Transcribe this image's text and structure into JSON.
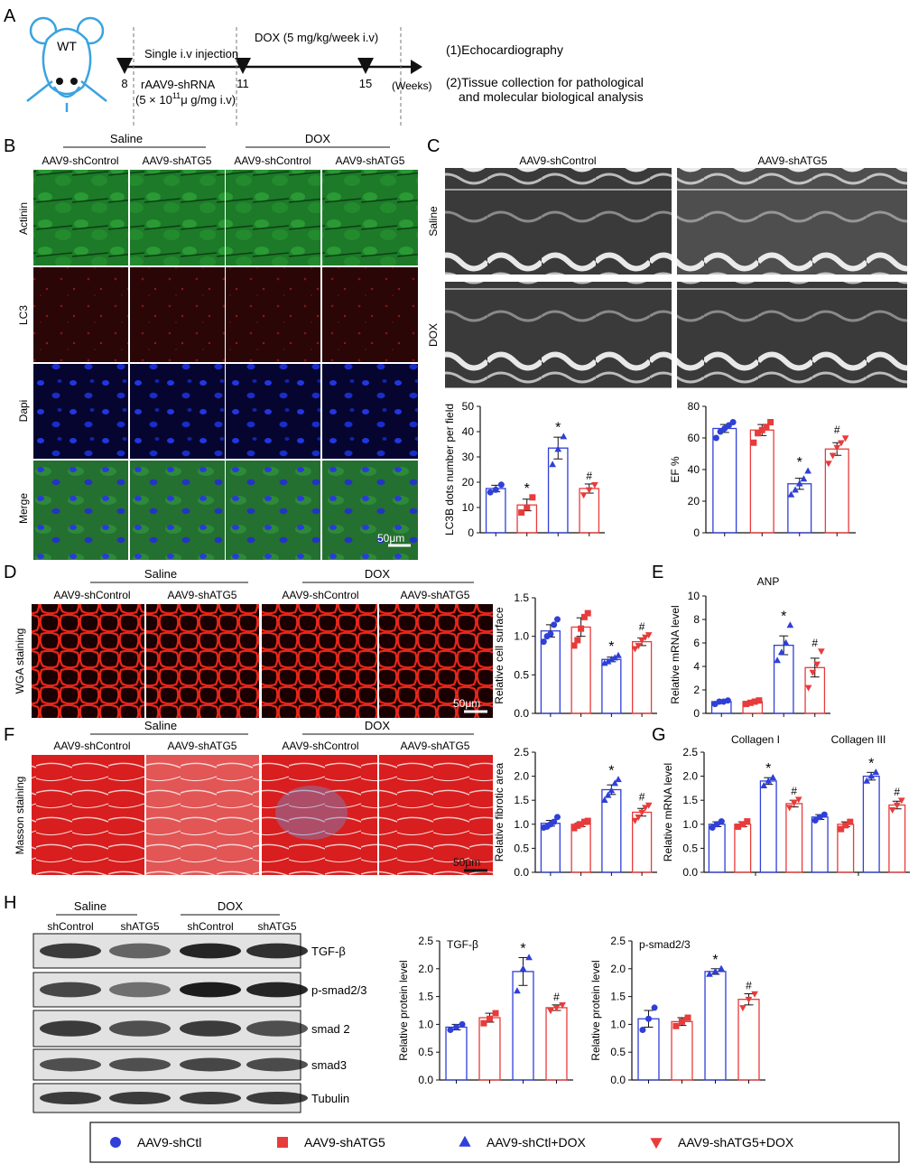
{
  "panels": {
    "A": "A",
    "B": "B",
    "C": "C",
    "D": "D",
    "E": "E",
    "F": "F",
    "G": "G",
    "H": "H"
  },
  "panel_a": {
    "mouse_label": "WT",
    "injection": "Single i.v injection",
    "dox": "DOX (5 mg/kg/week i.v)",
    "ticks": [
      "8",
      "11",
      "15"
    ],
    "weeks": "(Weeks)",
    "virus_line1": "rAAV9-shRNA",
    "virus_line2_pre": "(5 × 10",
    "virus_line2_sup": "11",
    "virus_line2_post": "μ g/mg i.v)",
    "outcome1": "(1)Echocardiography",
    "outcome2a": "(2)Tissue collection for pathological",
    "outcome2b": "and molecular biological analysis"
  },
  "panel_b": {
    "group_saline": "Saline",
    "group_dox": "DOX",
    "columns": [
      "AAV9-shControl",
      "AAV9-shATG5",
      "AAV9-shControl",
      "AAV9-shATG5"
    ],
    "rows": [
      "Actinin",
      "LC3",
      "Dapi",
      "Merge"
    ],
    "scalebar": "50μm"
  },
  "panel_c": {
    "columns": [
      "AAV9-shControl",
      "AAV9-shATG5"
    ],
    "rows": [
      "Saline",
      "DOX"
    ]
  },
  "panel_d": {
    "group_saline": "Saline",
    "group_dox": "DOX",
    "columns": [
      "AAV9-shControl",
      "AAV9-shATG5",
      "AAV9-shControl",
      "AAV9-shATG5"
    ],
    "row_label": "WGA staining",
    "scalebar": "50μm"
  },
  "panel_f": {
    "group_saline": "Saline",
    "group_dox": "DOX",
    "columns": [
      "AAV9-shControl",
      "AAV9-shATG5",
      "AAV9-shControl",
      "AAV9-shATG5"
    ],
    "row_label": "Masson staining",
    "scalebar": "50μm"
  },
  "panel_h": {
    "group_saline": "Saline",
    "group_dox": "DOX",
    "lanes": [
      "shControl",
      "shATG5",
      "shControl",
      "shATG5"
    ],
    "blots": [
      "TGF-β",
      "p-smad2/3",
      "smad 2",
      "smad3",
      "Tubulin"
    ]
  },
  "legend": [
    {
      "label": "AAV9-shCtl",
      "marker": "circle",
      "color": "#2f3fd8"
    },
    {
      "label": "AAV9-shATG5",
      "marker": "square",
      "color": "#e83b3b"
    },
    {
      "label": "AAV9-shCtl+DOX",
      "marker": "triangle-up",
      "color": "#2f3fd8"
    },
    {
      "label": "AAV9-shATG5+DOX",
      "marker": "triangle-down",
      "color": "#e83b3b"
    }
  ],
  "colors": {
    "blue": "#2f3fd8",
    "red": "#e83b3b"
  },
  "chart_data": [
    {
      "id": "lc3b",
      "type": "bar",
      "title": "",
      "ylabel": "LC3B dots number per field",
      "ylim": [
        0,
        50
      ],
      "yticks": [
        0,
        10,
        20,
        30,
        40,
        50
      ],
      "values": [
        17.5,
        11,
        33.5,
        17.5
      ],
      "sem": [
        1.3,
        2.3,
        4.3,
        1.8
      ],
      "points": [
        [
          16,
          17,
          19
        ],
        [
          8,
          10,
          14
        ],
        [
          27,
          33,
          38
        ],
        [
          15,
          17,
          19
        ]
      ],
      "annotations": [
        "",
        "*",
        "*",
        "#"
      ]
    },
    {
      "id": "ef",
      "type": "bar",
      "title": "",
      "ylabel": "EF %",
      "ylim": [
        0,
        80
      ],
      "yticks": [
        0,
        20,
        40,
        60,
        80
      ],
      "values": [
        66,
        65,
        31,
        53
      ],
      "sem": [
        2.5,
        3.5,
        3.5,
        4
      ],
      "points": [
        [
          60,
          64,
          66,
          68,
          70
        ],
        [
          57,
          63,
          65,
          67,
          70
        ],
        [
          24,
          27,
          31,
          34,
          39
        ],
        [
          44,
          49,
          54,
          57,
          60
        ]
      ],
      "annotations": [
        "",
        "",
        "*",
        "#"
      ]
    },
    {
      "id": "cellsurface",
      "type": "bar",
      "title": "",
      "ylabel": "Relative cell surface",
      "ylim": [
        0,
        1.5
      ],
      "yticks": [
        0.0,
        0.5,
        1.0,
        1.5
      ],
      "values": [
        1.07,
        1.12,
        0.7,
        0.93
      ],
      "sem": [
        0.08,
        0.12,
        0.03,
        0.05
      ],
      "points": [
        [
          0.93,
          1.0,
          1.03,
          1.15,
          1.22
        ],
        [
          0.88,
          0.95,
          1.1,
          1.25,
          1.3
        ],
        [
          0.65,
          0.67,
          0.7,
          0.72,
          0.75
        ],
        [
          0.84,
          0.88,
          0.95,
          0.99,
          1.02
        ]
      ],
      "annotations": [
        "",
        "",
        "*",
        "#"
      ]
    },
    {
      "id": "anp",
      "type": "bar",
      "title": "ANP",
      "ylabel": "Relative mRNA level",
      "ylim": [
        0,
        10
      ],
      "yticks": [
        0,
        2,
        4,
        6,
        8,
        10
      ],
      "values": [
        1.0,
        1.0,
        5.8,
        3.9
      ],
      "sem": [
        0.1,
        0.1,
        0.8,
        0.8
      ],
      "points": [
        [
          0.8,
          1.0,
          1.0,
          1.1
        ],
        [
          0.8,
          0.9,
          1.0,
          1.1
        ],
        [
          4.5,
          5.2,
          6.0,
          7.5
        ],
        [
          2.2,
          3.5,
          4.2,
          5.3
        ]
      ],
      "annotations": [
        "",
        "",
        "*",
        "#"
      ]
    },
    {
      "id": "fibrotic",
      "type": "bar",
      "title": "",
      "ylabel": "Relative fibrotic area",
      "ylim": [
        0,
        2.5
      ],
      "yticks": [
        0.0,
        0.5,
        1.0,
        1.5,
        2.0,
        2.5
      ],
      "values": [
        1.02,
        1.0,
        1.72,
        1.25
      ],
      "sem": [
        0.06,
        0.05,
        0.1,
        0.08
      ],
      "points": [
        [
          0.93,
          0.95,
          1.0,
          1.05,
          1.15
        ],
        [
          0.92,
          0.97,
          1.0,
          1.05,
          1.07
        ],
        [
          1.5,
          1.6,
          1.7,
          1.85,
          1.93
        ],
        [
          1.08,
          1.15,
          1.25,
          1.35,
          1.4
        ]
      ],
      "annotations": [
        "",
        "",
        "*",
        "#"
      ]
    },
    {
      "id": "collagen",
      "type": "bar",
      "title": "",
      "ylabel": "Relative mRNA level",
      "ylim": [
        0,
        2.5
      ],
      "yticks": [
        0.0,
        0.5,
        1.0,
        1.5,
        2.0,
        2.5
      ],
      "groups": [
        "Collagen I",
        "Collagen III"
      ],
      "values": [
        [
          1.0,
          1.0,
          1.9,
          1.43
        ],
        [
          1.15,
          1.0,
          2.0,
          1.4
        ]
      ],
      "sem": [
        [
          0.05,
          0.05,
          0.07,
          0.07
        ],
        [
          0.05,
          0.05,
          0.08,
          0.08
        ]
      ],
      "points": [
        [
          [
            0.93,
            1.0,
            1.06
          ],
          [
            0.95,
            1.0,
            1.06
          ],
          [
            1.8,
            1.9,
            1.97
          ],
          [
            1.35,
            1.45,
            1.52
          ]
        ],
        [
          [
            1.08,
            1.15,
            1.2
          ],
          [
            0.9,
            0.98,
            1.05
          ],
          [
            1.9,
            2.0,
            2.08
          ],
          [
            1.3,
            1.4,
            1.5
          ]
        ]
      ],
      "annotations": [
        [
          "",
          "",
          "*",
          "#"
        ],
        [
          "",
          "",
          "*",
          "#"
        ]
      ]
    },
    {
      "id": "tgfb",
      "type": "bar",
      "title": "TGF-β",
      "ylabel": "Relative protein level",
      "ylim": [
        0,
        2.5
      ],
      "yticks": [
        0.0,
        0.5,
        1.0,
        1.5,
        2.0,
        2.5
      ],
      "values": [
        0.95,
        1.12,
        1.95,
        1.3
      ],
      "sem": [
        0.05,
        0.08,
        0.25,
        0.05
      ],
      "points": [
        [
          0.9,
          0.95,
          1.0
        ],
        [
          1.02,
          1.1,
          1.2
        ],
        [
          1.6,
          2.0,
          2.2
        ],
        [
          1.25,
          1.3,
          1.35
        ]
      ],
      "annotations": [
        "",
        "",
        "*",
        "#"
      ]
    },
    {
      "id": "psmad",
      "type": "bar",
      "title": "p-smad2/3",
      "ylabel": "Relative protein level",
      "ylim": [
        0,
        2.5
      ],
      "yticks": [
        0.0,
        0.5,
        1.0,
        1.5,
        2.0,
        2.5
      ],
      "values": [
        1.1,
        1.05,
        1.95,
        1.45
      ],
      "sem": [
        0.15,
        0.07,
        0.05,
        0.1
      ],
      "points": [
        [
          0.9,
          1.1,
          1.3
        ],
        [
          0.97,
          1.05,
          1.12
        ],
        [
          1.9,
          1.95,
          2.0
        ],
        [
          1.3,
          1.45,
          1.55
        ]
      ],
      "annotations": [
        "",
        "",
        "*",
        "#"
      ]
    }
  ]
}
